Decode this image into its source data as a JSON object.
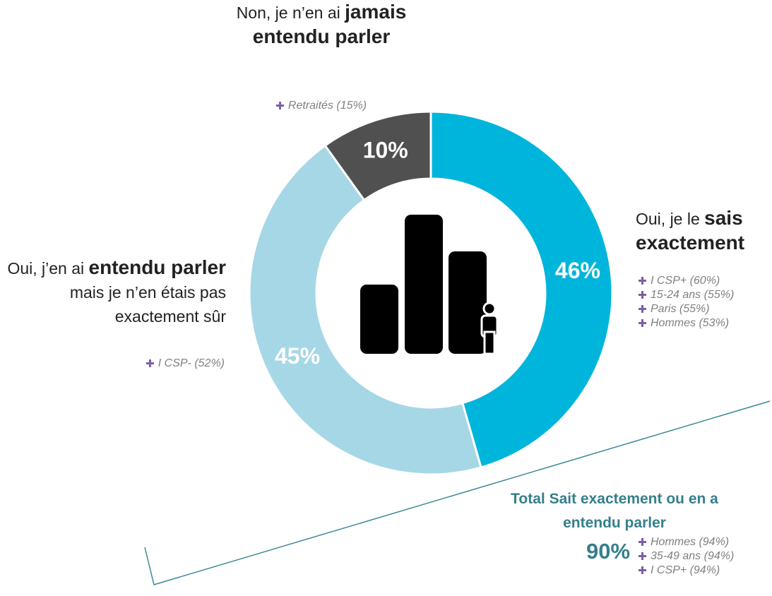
{
  "chart_data": {
    "type": "pie",
    "categories": [
      [
        "Oui, je le ",
        "sais exactement"
      ],
      [
        "Oui, j’en ai ",
        "entendu parler",
        " mais je n’en étais pas exactement sûr"
      ],
      [
        "Non, je n’en ai ",
        "jamais entendu parler"
      ]
    ],
    "values": [
      46,
      45,
      10
    ],
    "value_labels": [
      "46%",
      "45%",
      "10%"
    ],
    "colors": [
      "#00b5dc",
      "#a6d7e6",
      "#505050"
    ],
    "subgroups": [
      [
        "I CSP+ (60%)",
        "15-24 ans (55%)",
        "Paris (55%)",
        "Hommes (53%)"
      ],
      [
        "I CSP- (52%)"
      ],
      [
        "Retraités (15%)"
      ]
    ],
    "total": {
      "title": "Total Sait exactement ou en a entendu parler",
      "value_label": "90%",
      "subgroups": [
        "Hommes (94%)",
        "35-49 ans (94%)",
        "I CSP+ (94%)"
      ]
    }
  }
}
